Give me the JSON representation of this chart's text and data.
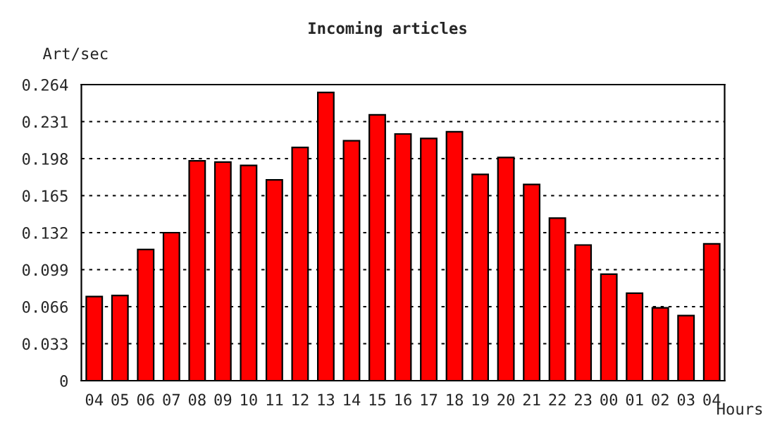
{
  "chart_data": {
    "type": "bar",
    "title": "Incoming articles",
    "xlabel": "Hours",
    "ylabel": "Art/sec",
    "categories": [
      "04",
      "05",
      "06",
      "07",
      "08",
      "09",
      "10",
      "11",
      "12",
      "13",
      "14",
      "15",
      "16",
      "17",
      "18",
      "19",
      "20",
      "21",
      "22",
      "23",
      "00",
      "01",
      "02",
      "03",
      "04"
    ],
    "values": [
      0.075,
      0.076,
      0.117,
      0.132,
      0.196,
      0.195,
      0.192,
      0.179,
      0.208,
      0.257,
      0.214,
      0.237,
      0.22,
      0.216,
      0.222,
      0.184,
      0.199,
      0.175,
      0.145,
      0.121,
      0.095,
      0.078,
      0.065,
      0.058,
      0.122
    ],
    "color": "#ff0000",
    "ylim": [
      0,
      0.264
    ],
    "yticks": [
      {
        "value": 0,
        "label": "0"
      },
      0.033,
      0.066,
      0.099,
      0.132,
      0.165,
      0.198,
      0.231,
      0.264
    ],
    "grid": "y"
  }
}
